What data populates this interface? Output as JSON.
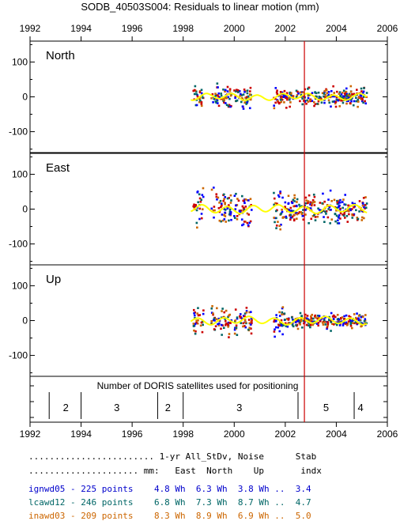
{
  "chart_data": {
    "type": "scatter",
    "title": "SODB_40503S004: Residuals to linear motion (mm)",
    "xlim": [
      1992,
      2006
    ],
    "x_ticks": [
      1992,
      1994,
      1996,
      1998,
      2000,
      2002,
      2004,
      2006
    ],
    "x_tick_labels": [
      "1992",
      "1994",
      "1996",
      "1998",
      "2000",
      "2002",
      "2004",
      "2006"
    ],
    "ylim": [
      -160,
      160
    ],
    "y_ticks": [
      100,
      0,
      -100
    ],
    "y_tick_labels": [
      "100",
      "0",
      "-100"
    ],
    "event_line_x": 2002.75,
    "event_line_color": "#cc0000",
    "smooth_color": "#ffff00",
    "series_colors": [
      "#0000ff",
      "#006666",
      "#cc6600",
      "#cc0000"
    ],
    "panels": [
      {
        "label": "North",
        "spread": 18,
        "pre_spread": 22,
        "smooth_amp": 8
      },
      {
        "label": "East",
        "spread": 26,
        "pre_spread": 40,
        "smooth_amp": 10
      },
      {
        "label": "Up",
        "spread": 14,
        "pre_spread": 28,
        "smooth_amp": 9
      }
    ],
    "data_segments": [
      [
        1998.4,
        1998.8
      ],
      [
        1999.1,
        1999.9
      ],
      [
        2000.0,
        2000.7
      ],
      [
        2001.55,
        2005.2
      ]
    ],
    "satellites": {
      "title": "Number of DORIS satellites used for positioning",
      "boundaries": [
        1992.75,
        1994.0,
        1997.0,
        1998.0,
        2002.5,
        2004.7
      ],
      "counts": [
        {
          "x": 1993.4,
          "n": "2"
        },
        {
          "x": 1995.4,
          "n": "3"
        },
        {
          "x": 1997.4,
          "n": "2"
        },
        {
          "x": 2000.2,
          "n": "3"
        },
        {
          "x": 2003.6,
          "n": "5"
        },
        {
          "x": 2004.95,
          "n": "4"
        }
      ]
    }
  },
  "table": {
    "header1": "........................ 1-yr All_StDv, Noise      Stab",
    "header2": "..................... mm:   East  North    Up       indx",
    "rows": [
      {
        "text": "ignwd05 - 225 points    4.8 Wh  6.3 Wh  3.8 Wh ..  3.4",
        "color": "#0000cc"
      },
      {
        "text": "lcawd12 - 246 points    6.8 Wh  7.3 Wh  8.7 Wh ..  4.7",
        "color": "#006666"
      },
      {
        "text": "inawd03 - 209 points    8.3 Wh  8.9 Wh  6.9 Wh ..  5.0",
        "color": "#cc6600"
      }
    ]
  }
}
